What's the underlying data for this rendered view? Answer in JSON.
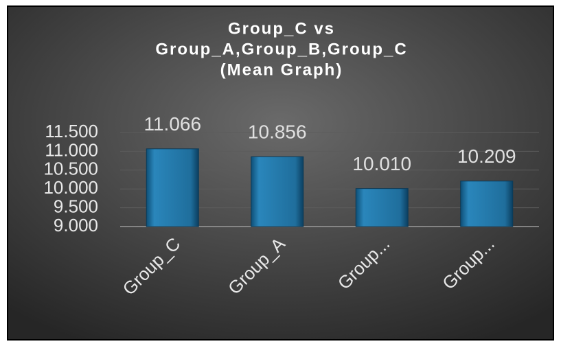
{
  "chart_data": {
    "type": "bar",
    "title": [
      "Group_C vs",
      "Group_A,Group_B,Group_C",
      "(Mean  Graph)"
    ],
    "categories": [
      "Group_C",
      "Group_A",
      "Group...",
      "Group..."
    ],
    "values": [
      11.066,
      10.856,
      10.01,
      10.209
    ],
    "value_labels": [
      "11.066",
      "10.856",
      "10.010",
      "10.209"
    ],
    "color": "#1f6e9c",
    "ylim": [
      9,
      11.5
    ],
    "yticks": [
      {
        "value": 9,
        "label": "9.000"
      },
      {
        "value": 9.5,
        "label": "9.500"
      },
      {
        "value": 10,
        "label": "10.000"
      },
      {
        "value": 10.5,
        "label": "10.500"
      },
      {
        "value": 11,
        "label": "11.000"
      },
      {
        "value": 11.5,
        "label": "11.500"
      }
    ],
    "grid": true
  }
}
